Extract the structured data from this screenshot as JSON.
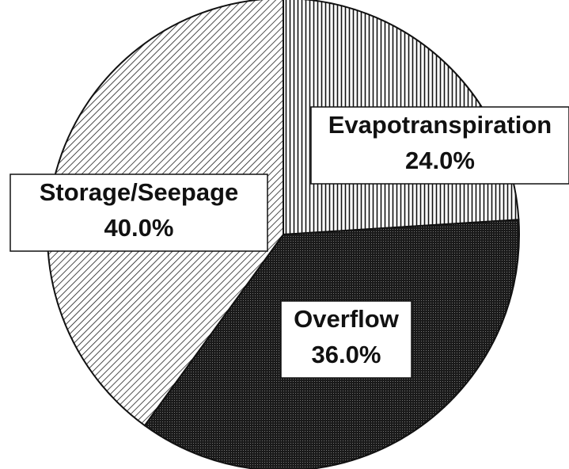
{
  "chart_data": {
    "type": "pie",
    "categories": [
      "Evapotranspiration",
      "Overflow",
      "Storage/Seepage"
    ],
    "values": [
      24,
      36,
      40
    ],
    "value_labels": [
      "24.0%",
      "36.0%",
      "40.0%"
    ]
  }
}
